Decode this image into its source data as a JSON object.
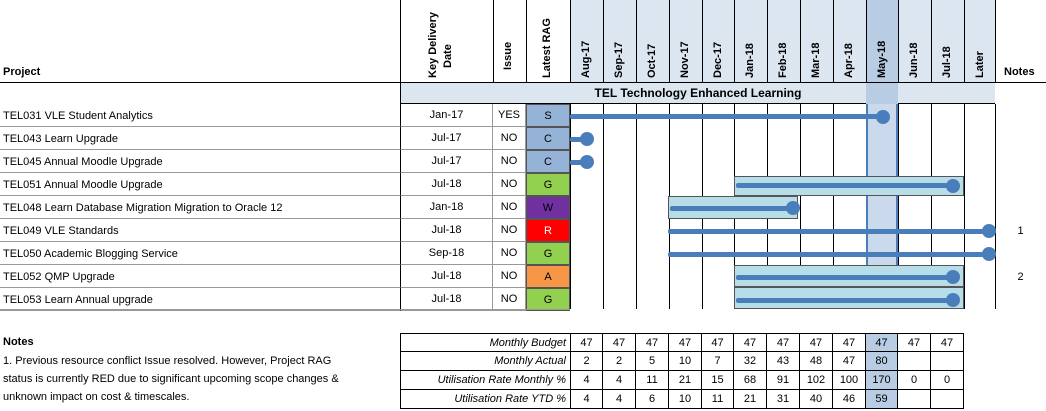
{
  "header": {
    "project_label": "Project",
    "key_delivery_label_1": "Key Delivery",
    "key_delivery_label_2": "Date",
    "issue_label": "Issue",
    "latest_rag_label": "Latest RAG",
    "notes_label": "Notes",
    "months": [
      "Aug-17",
      "Sep-17",
      "Oct-17",
      "Nov-17",
      "Dec-17",
      "Jan-18",
      "Feb-18",
      "Mar-18",
      "Apr-18",
      "May-18",
      "Jun-18",
      "Jul-18",
      "Later"
    ]
  },
  "section": {
    "title": "TEL Technology Enhanced Learning"
  },
  "projects": [
    {
      "name": "TEL031 VLE Student Analytics",
      "date": "Jan-17",
      "issue": "YES",
      "rag": "S",
      "rag_color": "#95b3d7",
      "note": ""
    },
    {
      "name": "TEL043 Learn Upgrade",
      "date": "Jul-17",
      "issue": "NO",
      "rag": "C",
      "rag_color": "#95b3d7",
      "note": ""
    },
    {
      "name": "TEL045 Annual Moodle Upgrade",
      "date": "Jul-17",
      "issue": "NO",
      "rag": "C",
      "rag_color": "#95b3d7",
      "note": ""
    },
    {
      "name": "TEL051 Annual Moodle Upgrade",
      "date": "Jul-18",
      "issue": "NO",
      "rag": "G",
      "rag_color": "#92d050",
      "note": ""
    },
    {
      "name": "TEL048 Learn Database Migration Migration to Oracle 12",
      "date": "Jan-18",
      "issue": "NO",
      "rag": "W",
      "rag_color": "#7030a0",
      "note": ""
    },
    {
      "name": "TEL049 VLE Standards",
      "date": "Jul-18",
      "issue": "NO",
      "rag": "R",
      "rag_color": "#ff0000",
      "note": "1"
    },
    {
      "name": "TEL050 Academic Blogging Service",
      "date": "Sep-18",
      "issue": "NO",
      "rag": "G",
      "rag_color": "#92d050",
      "note": ""
    },
    {
      "name": "TEL052 QMP Upgrade",
      "date": "Jul-18",
      "issue": "NO",
      "rag": "A",
      "rag_color": "#f79646",
      "note": "2"
    },
    {
      "name": "TEL053 Learn Annual upgrade",
      "date": "Jul-18",
      "issue": "NO",
      "rag": "G",
      "rag_color": "#92d050",
      "note": ""
    }
  ],
  "notes": {
    "title": "Notes",
    "line1": "1. Previous resource conflict Issue resolved. However, Project RAG",
    "line2": "status is currently RED due to significant upcoming scope changes &",
    "line3": "unknown impact on cost & timescales."
  },
  "budget_table": {
    "rows": [
      {
        "label": "Monthly Budget",
        "values": [
          "47",
          "47",
          "47",
          "47",
          "47",
          "47",
          "47",
          "47",
          "47",
          "47",
          "47",
          "47"
        ]
      },
      {
        "label": "Monthly Actual",
        "values": [
          "2",
          "2",
          "5",
          "10",
          "7",
          "32",
          "43",
          "48",
          "47",
          "80",
          "",
          ""
        ]
      },
      {
        "label": "Utilisation Rate Monthly %",
        "values": [
          "4",
          "4",
          "11",
          "21",
          "15",
          "68",
          "91",
          "102",
          "100",
          "170",
          "0",
          "0"
        ]
      },
      {
        "label": "Utilisation Rate YTD %",
        "values": [
          "4",
          "4",
          "6",
          "10",
          "11",
          "21",
          "31",
          "40",
          "46",
          "59",
          "",
          ""
        ]
      }
    ]
  },
  "colors": {
    "header_fill": "#dce6f1",
    "current_month_fill": "#b8cce4",
    "section_fill": "#dce6f1",
    "bar_color": "#4a7ebb",
    "shade_fill": "#b7dde8"
  }
}
